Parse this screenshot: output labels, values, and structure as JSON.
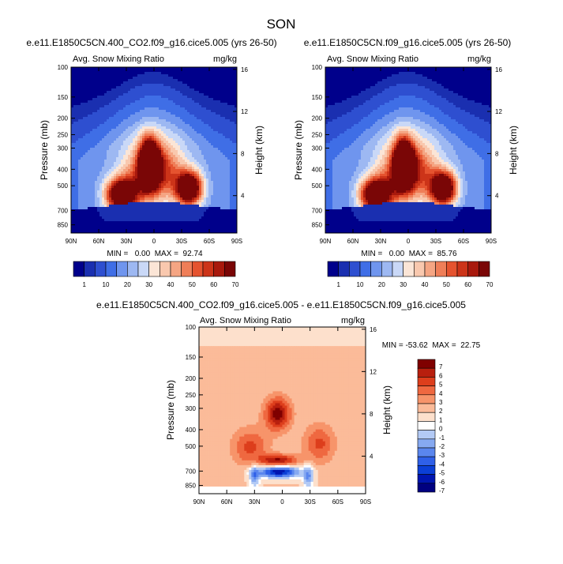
{
  "page_title": "SON",
  "palettes": {
    "snow": [
      "#00008b",
      "#1a2fb0",
      "#2e4fd0",
      "#3f6ee6",
      "#6f95ee",
      "#9db8f2",
      "#c9d8f7",
      "#fbe5d6",
      "#f9c8ae",
      "#f5a583",
      "#ef7e58",
      "#e5532f",
      "#cc3419",
      "#a8190d",
      "#7a0606"
    ],
    "diff": [
      "#000080",
      "#0015b0",
      "#0b3fd6",
      "#2f60e8",
      "#5a86ee",
      "#86a9f1",
      "#b3caf5",
      "#ffffff",
      "#fde0cc",
      "#fbbb99",
      "#f7946a",
      "#ef6840",
      "#dd3e1c",
      "#b81f0e",
      "#7f0000"
    ]
  },
  "chart_data": [
    {
      "type": "heatmap",
      "title": "e.e11.E1850C5CN.400_CO2.f09_g16.cice5.005 (yrs 26-50)",
      "left_label": "Avg. Snow Mixing Ratio",
      "right_label": "mg/kg",
      "ylabel": "Pressure (mb)",
      "ylabel_right": "Height (km)",
      "x_ticks": [
        "90N",
        "60N",
        "30N",
        "0",
        "30S",
        "60S",
        "90S"
      ],
      "y_ticks": [
        "100",
        "150",
        "200",
        "250",
        "300",
        "400",
        "500",
        "700",
        "850"
      ],
      "y_ticks_right": [
        "16",
        "12",
        "8",
        "4"
      ],
      "min_max": "MIN =   0.00  MAX =  92.74",
      "colorbar_labels": [
        "1",
        "10",
        "20",
        "30",
        "40",
        "50",
        "60",
        "70"
      ],
      "field": {
        "kind": "snow",
        "max": 92.74
      }
    },
    {
      "type": "heatmap",
      "title": "e.e11.E1850C5CN.f09_g16.cice5.005 (yrs 26-50)",
      "left_label": "Avg. Snow Mixing Ratio",
      "right_label": "mg/kg",
      "ylabel": "Pressure (mb)",
      "ylabel_right": "Height (km)",
      "x_ticks": [
        "90N",
        "60N",
        "30N",
        "0",
        "30S",
        "60S",
        "90S"
      ],
      "y_ticks": [
        "100",
        "150",
        "200",
        "250",
        "300",
        "400",
        "500",
        "700",
        "850"
      ],
      "y_ticks_right": [
        "16",
        "12",
        "8",
        "4"
      ],
      "min_max": "MIN =   0.00  MAX =  85.76",
      "colorbar_labels": [
        "1",
        "10",
        "20",
        "30",
        "40",
        "50",
        "60",
        "70"
      ],
      "field": {
        "kind": "snow",
        "max": 85.76
      }
    },
    {
      "type": "heatmap",
      "title": "e.e11.E1850C5CN.400_CO2.f09_g16.cice5.005 - e.e11.E1850C5CN.f09_g16.cice5.005",
      "left_label": "Avg. Snow Mixing Ratio",
      "right_label": "mg/kg",
      "ylabel": "Pressure (mb)",
      "ylabel_right": "Height (km)",
      "x_ticks": [
        "90N",
        "60N",
        "30N",
        "0",
        "30S",
        "60S",
        "90S"
      ],
      "y_ticks": [
        "100",
        "150",
        "200",
        "250",
        "300",
        "400",
        "500",
        "700",
        "850"
      ],
      "y_ticks_right": [
        "16",
        "12",
        "8",
        "4"
      ],
      "min_max": "MIN = -53.62  MAX =  22.75",
      "colorbar_labels": [
        "7",
        "6",
        "5",
        "4",
        "3",
        "2",
        "1",
        "0",
        "-1",
        "-2",
        "-3",
        "-4",
        "-5",
        "-6",
        "-7"
      ],
      "field": {
        "kind": "diff",
        "min": -53.62,
        "max": 22.75
      }
    }
  ]
}
